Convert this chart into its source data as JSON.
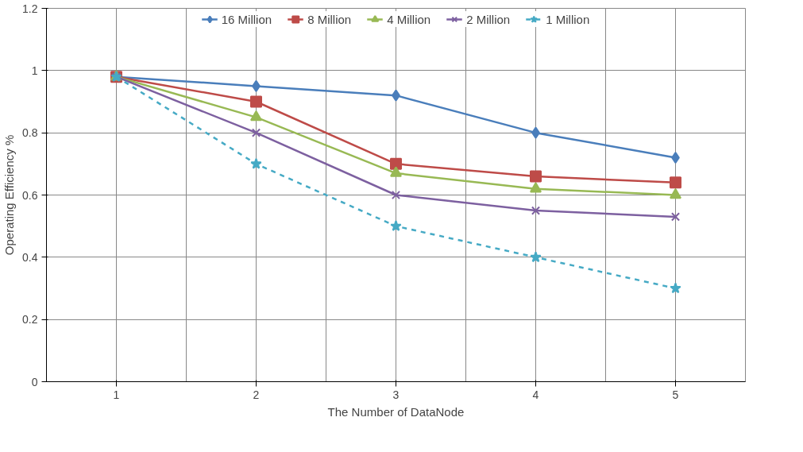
{
  "chart_data": {
    "type": "line",
    "xlabel": "The Number of DataNode",
    "ylabel": "Operating Efficiency %",
    "categories": [
      "1",
      "2",
      "3",
      "4",
      "5"
    ],
    "ylim": [
      0,
      1.2
    ],
    "yticks": [
      0,
      0.2,
      0.4,
      0.6,
      0.8,
      1,
      1.2
    ],
    "grid": true,
    "legend": "top",
    "series": [
      {
        "name": "16 Million",
        "color": "#4a7ebb",
        "marker": "diamond",
        "line_style": "solid",
        "values": [
          0.98,
          0.95,
          0.92,
          0.8,
          0.72
        ]
      },
      {
        "name": "8 Million",
        "color": "#be4b48",
        "marker": "square",
        "line_style": "solid",
        "values": [
          0.98,
          0.9,
          0.7,
          0.66,
          0.64
        ]
      },
      {
        "name": "4 Million",
        "color": "#98b954",
        "marker": "triangle",
        "line_style": "solid",
        "values": [
          0.98,
          0.85,
          0.67,
          0.62,
          0.6
        ]
      },
      {
        "name": "2 Million",
        "color": "#7d60a0",
        "marker": "cross",
        "line_style": "solid",
        "values": [
          0.98,
          0.8,
          0.6,
          0.55,
          0.53
        ]
      },
      {
        "name": "1 Million",
        "color": "#46aac5",
        "marker": "star",
        "line_style": "dashed",
        "values": [
          0.98,
          0.7,
          0.5,
          0.4,
          0.3
        ]
      }
    ]
  }
}
